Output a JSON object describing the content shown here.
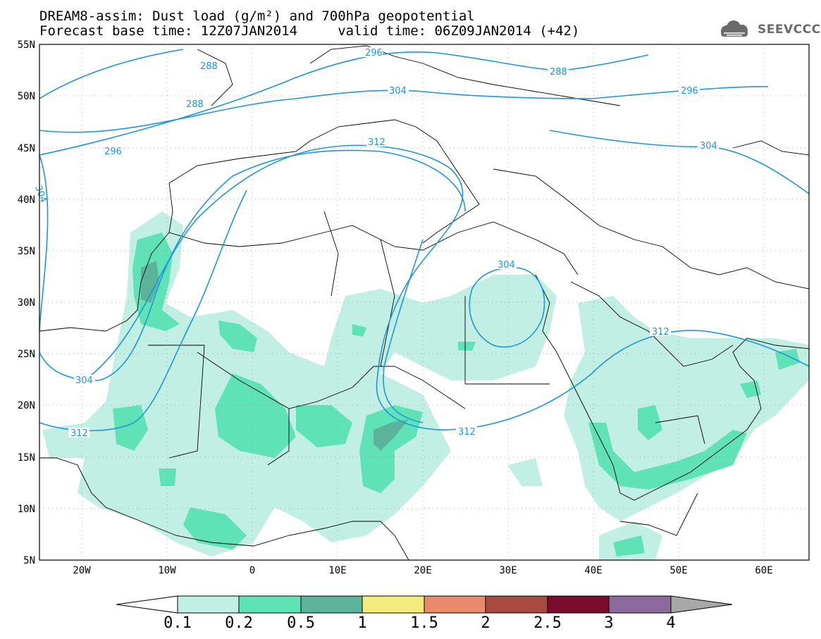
{
  "title": {
    "line1": "DREAM8-assim: Dust load (g/m²) and 700hPa geopotential",
    "line2": "Forecast base time: 12Z07JAN2014     valid time: 06Z09JAN2014 (+42)"
  },
  "logo": {
    "text": "SEEVCCC",
    "icon": "cloud-icon"
  },
  "colors": {
    "contour": "#1e96dc",
    "coast": "#000000",
    "dust": [
      "#c2efe4",
      "#5fe2b5",
      "#5bb39a",
      "#f3ec7c",
      "#e88a6b",
      "#a84a3f",
      "#7a0c2e",
      "#8c6a9e",
      "#a8a8a8"
    ]
  },
  "map": {
    "lon_range": [
      -25,
      65
    ],
    "lat_range": [
      5,
      55
    ],
    "lon_ticks": [
      "20W",
      "10W",
      "0",
      "10E",
      "20E",
      "30E",
      "40E",
      "50E",
      "60E"
    ],
    "lat_ticks": [
      "55N",
      "50N",
      "45N",
      "40N",
      "35N",
      "30N",
      "25N",
      "20N",
      "15N",
      "10N",
      "5N"
    ],
    "contour_labels": [
      "296",
      "288",
      "288",
      "304",
      "296",
      "288",
      "296",
      "304",
      "312",
      "304",
      "312",
      "312",
      "312",
      "304",
      "304"
    ]
  },
  "colorbar": {
    "labels": [
      "0.1",
      "0.2",
      "0.5",
      "1",
      "1.5",
      "2",
      "2.5",
      "3",
      "4"
    ]
  }
}
